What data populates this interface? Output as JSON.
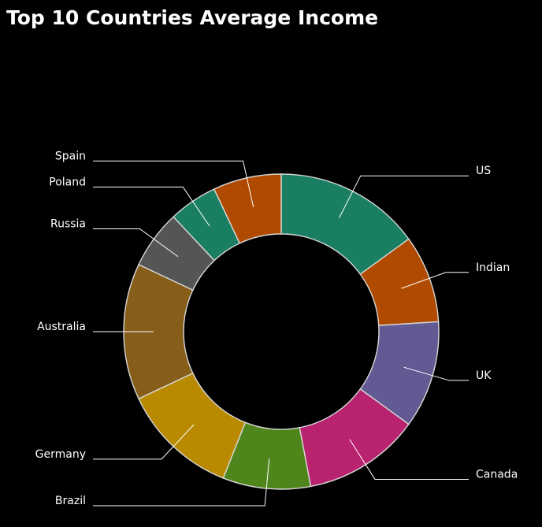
{
  "chart_data": {
    "type": "pie",
    "title": "Top 10 Countries Average Income",
    "donut": true,
    "categories": [
      "US",
      "Indian",
      "UK",
      "Canada",
      "Brazil",
      "Germany",
      "Australia",
      "Russia",
      "Poland",
      "Spain"
    ],
    "values": [
      15,
      9,
      11,
      12,
      9,
      12,
      14,
      6,
      5,
      7
    ],
    "colors": [
      "#1a7f62",
      "#b04a00",
      "#625a93",
      "#b8226f",
      "#4f861c",
      "#b98a00",
      "#865e1a",
      "#555555",
      "#1a7f62",
      "#b04a00"
    ],
    "legend": "none"
  }
}
